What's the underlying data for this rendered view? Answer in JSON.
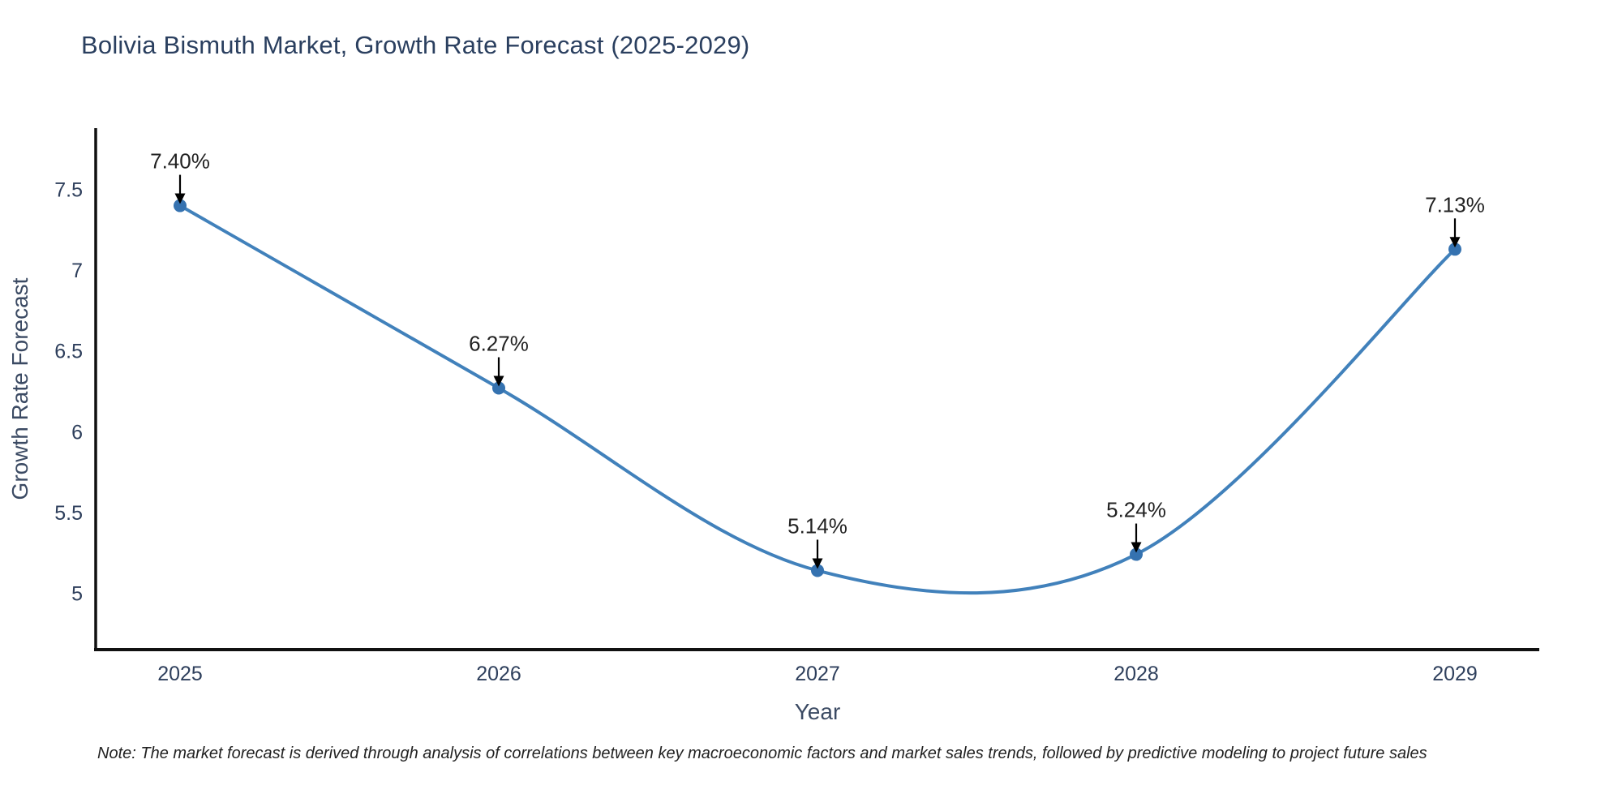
{
  "title": "Bolivia Bismuth Market, Growth Rate Forecast (2025-2029)",
  "note": "Note: The market forecast is derived through analysis of correlations between key macroeconomic factors and market sales trends, followed by predictive modeling to project future sales",
  "chart_data": {
    "type": "line",
    "title": "Bolivia Bismuth Market, Growth Rate Forecast (2025-2029)",
    "xlabel": "Year",
    "ylabel": "Growth Rate Forecast",
    "categories": [
      "2025",
      "2026",
      "2027",
      "2028",
      "2029"
    ],
    "values": [
      7.4,
      6.27,
      5.14,
      5.24,
      7.13
    ],
    "point_labels": [
      "7.40%",
      "6.27%",
      "5.14%",
      "5.24%",
      "7.13%"
    ],
    "yticks": [
      5,
      5.5,
      6,
      6.5,
      7,
      7.5
    ],
    "ylim": [
      4.65,
      7.88
    ],
    "grid": false,
    "legend": false,
    "line_shape": "spline",
    "annotation_arrows": true,
    "colors": {
      "line": "#4181bb",
      "marker": "#3572b0",
      "axis": "#111111",
      "tick_text": "#2e3f5c",
      "axis_title_text": "#3b4a63",
      "annotation_text": "#222222",
      "annotation_arrow": "#000000"
    }
  }
}
